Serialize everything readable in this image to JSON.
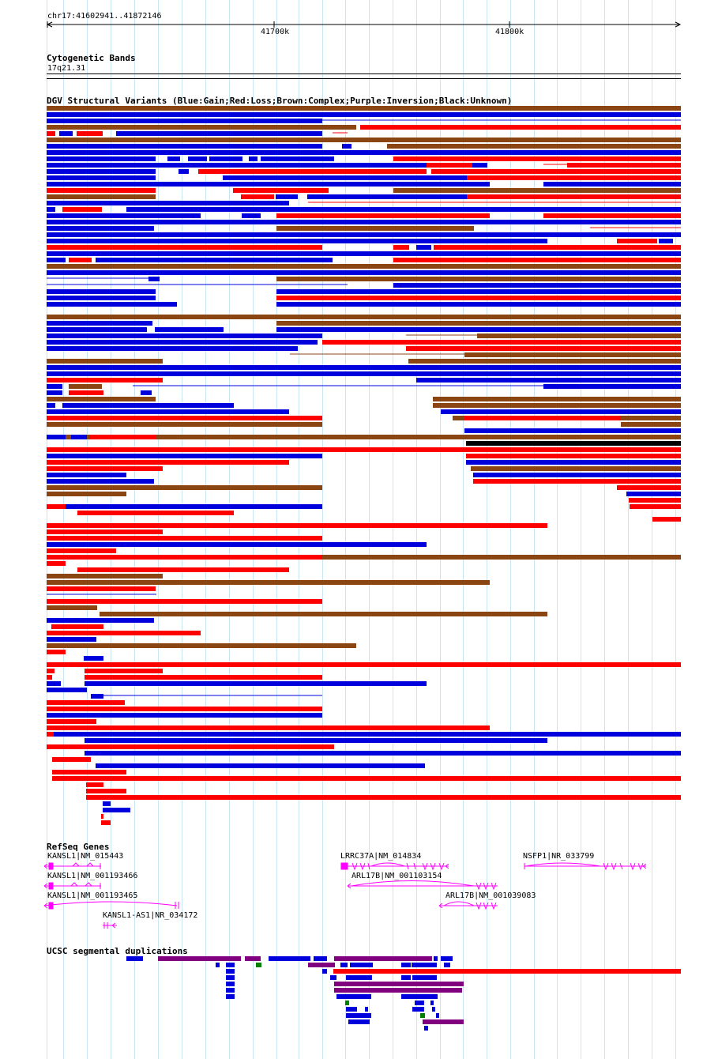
{
  "region": "chr17:41602941..41872146",
  "ruler": {
    "ticks": [
      "41700k",
      "41800k"
    ]
  },
  "colors": {
    "blue": "#0000dd",
    "red": "#ff0000",
    "brown": "#8b4513",
    "black": "#000000",
    "purple": "#800080",
    "magenta": "#ff00ff",
    "green": "#008000",
    "grid": "#c9e6f5"
  },
  "cytobands": {
    "title": "Cytogenetic Bands",
    "band": "17q21.31"
  },
  "dgv": {
    "title": "DGV Structural Variants (Blue:Gain;Red:Loss;Brown:Complex;Purple:Inversion;Black:Unknown)",
    "variants": [
      [
        "brown",
        59,
        862
      ],
      [
        "blue",
        59,
        862
      ],
      [
        "blue",
        59,
        408
      ],
      [
        "brown",
        59,
        451
      ],
      [
        "red",
        456,
        862
      ],
      [
        "red",
        59,
        70
      ],
      [
        "blue",
        75,
        92
      ],
      [
        "red",
        97,
        130
      ],
      [
        "blue",
        147,
        408
      ],
      [
        "brown",
        59,
        862
      ],
      [
        "blue",
        59,
        408
      ],
      [
        "blue",
        433,
        445
      ],
      [
        "brown",
        490,
        862
      ],
      [
        "blue",
        59,
        862
      ],
      [
        "blue",
        59,
        197
      ],
      [
        "blue",
        212,
        228
      ],
      [
        "blue",
        238,
        262
      ],
      [
        "blue",
        265,
        307
      ],
      [
        "blue",
        315,
        326
      ],
      [
        "blue",
        330,
        423
      ],
      [
        "red",
        498,
        862
      ],
      [
        "blue",
        59,
        540
      ],
      [
        "red",
        540,
        598
      ],
      [
        "blue",
        598,
        617
      ],
      [
        "red",
        718,
        862
      ],
      [
        "blue",
        59,
        197
      ],
      [
        "blue",
        226,
        239
      ],
      [
        "red",
        251,
        540
      ],
      [
        "red",
        546,
        862
      ],
      [
        "blue",
        59,
        197
      ],
      [
        "blue",
        282,
        591
      ],
      [
        "red",
        591,
        862
      ],
      [
        "blue",
        59,
        620
      ],
      [
        "blue",
        688,
        862
      ],
      [
        "red",
        59,
        197
      ],
      [
        "red",
        295,
        416
      ],
      [
        "brown",
        498,
        862
      ],
      [
        "brown",
        59,
        197
      ],
      [
        "red",
        305,
        347
      ],
      [
        "blue",
        349,
        377
      ],
      [
        "blue",
        389,
        591
      ],
      [
        "red",
        591,
        862
      ],
      [
        "blue",
        59,
        366
      ],
      [
        "blue",
        59,
        70
      ],
      [
        "red",
        79,
        129
      ],
      [
        "blue",
        160,
        862
      ],
      [
        "blue",
        59,
        254
      ],
      [
        "blue",
        306,
        330
      ],
      [
        "red",
        350,
        620
      ],
      [
        "red",
        688,
        862
      ],
      [
        "blue",
        59,
        408
      ],
      [
        "blue",
        350,
        862
      ],
      [
        "blue",
        59,
        195
      ],
      [
        "brown",
        350,
        600
      ],
      [
        "blue",
        59,
        862
      ],
      [
        "blue",
        59,
        540
      ],
      [
        "blue",
        546,
        862
      ],
      [
        "blue",
        59,
        693
      ],
      [
        "red",
        781,
        832
      ],
      [
        "blue",
        834,
        852
      ],
      [
        "red",
        59,
        408
      ],
      [
        "red",
        498,
        518
      ],
      [
        "blue",
        527,
        546
      ],
      [
        "red",
        549,
        862
      ],
      [
        "blue",
        59,
        862
      ],
      [
        "blue",
        59,
        83
      ],
      [
        "red",
        87,
        116
      ],
      [
        "blue",
        121,
        421
      ],
      [
        "red",
        498,
        862
      ],
      [
        "brown",
        59,
        862
      ],
      [
        "blue",
        59,
        862
      ],
      [
        "blue",
        188,
        202
      ],
      [
        "brown",
        350,
        862
      ],
      [
        "blue",
        498,
        862
      ],
      [
        "blue",
        59,
        197
      ],
      [
        "blue",
        350,
        862
      ],
      [
        "blue",
        59,
        197
      ],
      [
        "red",
        350,
        862
      ],
      [
        "blue",
        59,
        224
      ],
      [
        "blue",
        350,
        862
      ],
      [
        "brown",
        59,
        862
      ],
      [
        "blue",
        59,
        193
      ],
      [
        "brown",
        350,
        862
      ],
      [
        "blue",
        59,
        186
      ],
      [
        "blue",
        196,
        283
      ],
      [
        "blue",
        350,
        862
      ],
      [
        "blue",
        59,
        408
      ],
      [
        "brown",
        604,
        862
      ],
      [
        "blue",
        59,
        402
      ],
      [
        "red",
        408,
        862
      ],
      [
        "blue",
        59,
        377
      ],
      [
        "red",
        514,
        862
      ],
      [
        "brown",
        588,
        862
      ],
      [
        "brown",
        59,
        206
      ],
      [
        "brown",
        517,
        862
      ],
      [
        "blue",
        59,
        862
      ],
      [
        "blue",
        59,
        862
      ],
      [
        "red",
        59,
        206
      ],
      [
        "blue",
        527,
        546
      ],
      [
        "blue",
        546,
        862
      ],
      [
        "blue",
        59,
        79
      ],
      [
        "brown",
        87,
        129
      ],
      [
        "blue",
        688,
        862
      ],
      [
        "blue",
        59,
        79
      ],
      [
        "red",
        87,
        131
      ],
      [
        "blue",
        178,
        192
      ],
      [
        "brown",
        548,
        862
      ],
      [
        "brown",
        59,
        197
      ],
      [
        "brown",
        548,
        862
      ],
      [
        "blue",
        59,
        70
      ],
      [
        "blue",
        79,
        296
      ],
      [
        "blue",
        558,
        862
      ],
      [
        "blue",
        59,
        366
      ],
      [
        "brown",
        573,
        862
      ],
      [
        "red",
        59,
        408
      ],
      [
        "red",
        588,
        786
      ],
      [
        "brown",
        786,
        862
      ],
      [
        "brown",
        59,
        408
      ],
      [
        "blue",
        588,
        862
      ],
      [
        "brown",
        59,
        862
      ],
      [
        "blue",
        59,
        83
      ],
      [
        "blue",
        90,
        110
      ],
      [
        "red",
        113,
        197
      ],
      [
        "black",
        590,
        862
      ],
      [
        "red",
        59,
        862
      ],
      [
        "red",
        59,
        158
      ],
      [
        "red",
        590,
        862
      ],
      [
        "blue",
        59,
        408
      ],
      [
        "blue",
        590,
        862
      ],
      [
        "red",
        59,
        366
      ],
      [
        "brown",
        596,
        862
      ],
      [
        "red",
        59,
        206
      ],
      [
        "blue",
        599,
        862
      ],
      [
        "blue",
        59,
        160
      ],
      [
        "red",
        599,
        862
      ],
      [
        "blue",
        59,
        195
      ],
      [
        "red",
        781,
        862
      ],
      [
        "brown",
        59,
        408
      ],
      [
        "blue",
        793,
        862
      ],
      [
        "brown",
        59,
        160
      ],
      [
        "red",
        796,
        862
      ],
      [
        "blue",
        59,
        408
      ],
      [
        "red",
        797,
        862
      ],
      [
        "red",
        59,
        83
      ],
      [
        "red",
        98,
        296
      ],
      [
        "red",
        826,
        862
      ],
      [
        "red",
        59,
        693
      ],
      [
        "red",
        59,
        206
      ],
      [
        "red",
        59,
        408
      ],
      [
        "blue",
        59,
        540
      ],
      [
        "red",
        59,
        147
      ],
      [
        "brown",
        59,
        862
      ],
      [
        "red",
        59,
        408
      ],
      [
        "red",
        59,
        83
      ],
      [
        "red",
        98,
        366
      ],
      [
        "brown",
        59,
        206
      ],
      [
        "brown",
        59,
        620
      ],
      [
        "red",
        59,
        197
      ],
      [
        "red",
        59,
        408
      ],
      [
        "red",
        59,
        134
      ],
      [
        "brown",
        59,
        123
      ],
      [
        "brown",
        126,
        693
      ],
      [
        "blue",
        59,
        195
      ],
      [
        "red",
        65,
        131
      ],
      [
        "brown",
        59,
        169
      ],
      [
        "red",
        59,
        254
      ],
      [
        "blue",
        59,
        122
      ],
      [
        "blue",
        129,
        226
      ],
      [
        "brown",
        59,
        451
      ],
      [
        "red",
        59,
        83
      ],
      [
        "blue",
        106,
        131
      ],
      [
        "red",
        59,
        122
      ],
      [
        "red",
        59,
        862
      ],
      [
        "red",
        59,
        69
      ],
      [
        "red",
        107,
        206
      ],
      [
        "red",
        59,
        66
      ],
      [
        "red",
        107,
        408
      ],
      [
        "blue",
        59,
        77
      ],
      [
        "blue",
        107,
        540
      ],
      [
        "blue",
        59,
        110
      ],
      [
        "blue",
        115,
        131
      ],
      [
        "red",
        59,
        158
      ],
      [
        "red",
        59,
        408
      ],
      [
        "blue",
        59,
        408
      ],
      [
        "red",
        59,
        122
      ],
      [
        "red",
        59,
        620
      ],
      [
        "blue",
        59,
        862
      ],
      [
        "red",
        59,
        68
      ],
      [
        "blue",
        107,
        693
      ],
      [
        "red",
        59,
        423
      ],
      [
        "red",
        65,
        206
      ],
      [
        "blue",
        107,
        862
      ],
      [
        "red",
        66,
        87
      ],
      [
        "red",
        66,
        115
      ],
      [
        "blue",
        121,
        538
      ],
      [
        "red",
        66,
        160
      ],
      [
        "red",
        66,
        862
      ],
      [
        "red",
        109,
        131
      ],
      [
        "red",
        109,
        160
      ],
      [
        "red",
        109,
        862
      ],
      [
        "blue",
        130,
        140
      ],
      [
        "blue",
        130,
        165
      ],
      [
        "red",
        128,
        131
      ],
      [
        "red",
        130,
        140
      ],
      [
        "red",
        128,
        131
      ]
    ]
  },
  "refseq": {
    "title": "RefSeq Genes",
    "genes": [
      "KANSL1|NM_015443",
      "KANSL1|NM_001193466",
      "KANSL1|NM_001193465",
      "KANSL1-AS1|NR_034172",
      "LRRC37A|NM_014834",
      "ARL17B|NM_001103154",
      "ARL17B|NM_001039083",
      "NSFP1|NR_033799"
    ]
  },
  "segdups": {
    "title": "UCSC segmental duplications",
    "items": [
      [
        "blue",
        160,
        181
      ],
      [
        "purple",
        200,
        305
      ],
      [
        "purple",
        310,
        330
      ],
      [
        "blue",
        340,
        393
      ],
      [
        "blue",
        397,
        414
      ],
      [
        "purple",
        423,
        547
      ],
      [
        "blue",
        549,
        554
      ],
      [
        "blue",
        558,
        573
      ],
      [
        "blue",
        273,
        278
      ],
      [
        "blue",
        286,
        297
      ],
      [
        "green",
        324,
        331
      ],
      [
        "purple",
        390,
        424
      ],
      [
        "blue",
        431,
        440
      ],
      [
        "blue",
        443,
        472
      ],
      [
        "blue",
        508,
        520
      ],
      [
        "blue",
        521,
        553
      ],
      [
        "blue",
        562,
        570
      ],
      [
        "red",
        422,
        862
      ],
      [
        "blue",
        286,
        297
      ],
      [
        "blue",
        408,
        414
      ],
      [
        "blue",
        286,
        297
      ],
      [
        "blue",
        418,
        426
      ],
      [
        "blue",
        438,
        471
      ],
      [
        "blue",
        508,
        520
      ],
      [
        "blue",
        522,
        553
      ],
      [
        "blue",
        286,
        297
      ],
      [
        "purple",
        423,
        587
      ],
      [
        "blue",
        286,
        297
      ],
      [
        "purple",
        423,
        585
      ],
      [
        "blue",
        286,
        297
      ],
      [
        "blue",
        426,
        470
      ],
      [
        "blue",
        508,
        554
      ],
      [
        "green",
        437,
        442
      ],
      [
        "blue",
        525,
        537
      ],
      [
        "blue",
        545,
        549
      ],
      [
        "blue",
        438,
        452
      ],
      [
        "blue",
        462,
        466
      ],
      [
        "blue",
        522,
        537
      ],
      [
        "blue",
        547,
        551
      ],
      [
        "blue",
        438,
        470
      ],
      [
        "green",
        532,
        538
      ],
      [
        "blue",
        552,
        556
      ],
      [
        "blue",
        441,
        468
      ],
      [
        "purple",
        535,
        587
      ],
      [
        "blue",
        537,
        542
      ]
    ]
  }
}
